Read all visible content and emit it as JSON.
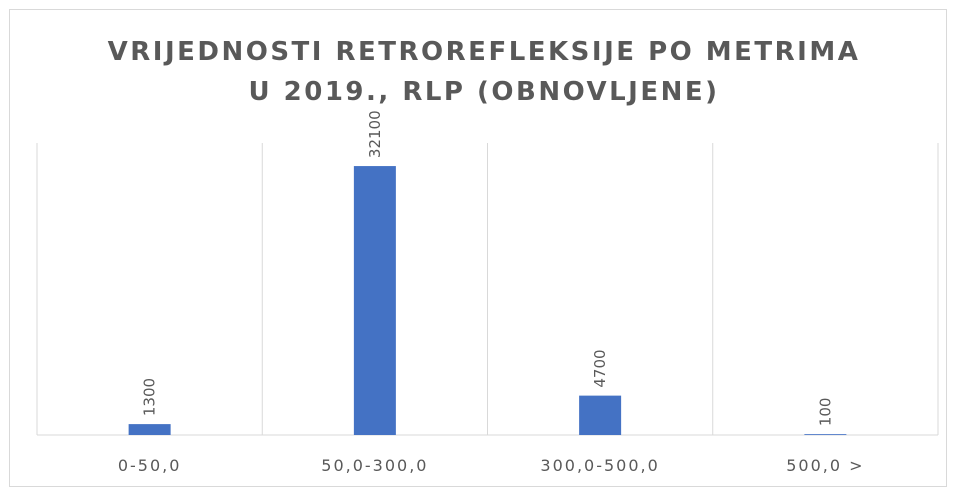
{
  "chart_data": {
    "type": "bar",
    "title": [
      "VRIJEDNOSTI RETROREFLEKSIJE PO METRIMA",
      "U 2019., RLP (OBNOVLJENE)"
    ],
    "categories": [
      "0-50,0",
      "50,0-300,0",
      "300,0-500,0",
      "500,0 >"
    ],
    "values": [
      1300,
      32100,
      4700,
      100
    ],
    "color": "#4472c4"
  }
}
